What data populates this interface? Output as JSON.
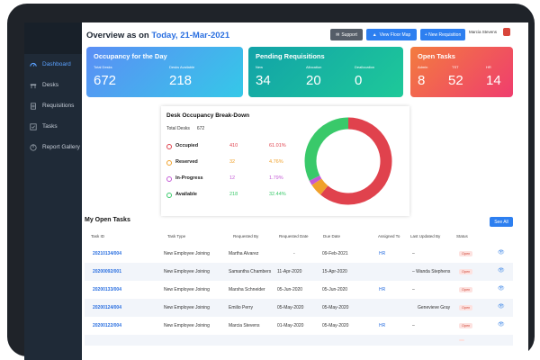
{
  "sidebar": {
    "items": [
      {
        "label": "Dashboard",
        "icon": "dashboard-icon",
        "active": true
      },
      {
        "label": "Desks",
        "icon": "desk-icon",
        "active": false
      },
      {
        "label": "Requisitions",
        "icon": "requisition-icon",
        "active": false
      },
      {
        "label": "Tasks",
        "icon": "tasks-icon",
        "active": false
      },
      {
        "label": "Report Gallery",
        "icon": "report-icon",
        "active": false
      }
    ]
  },
  "header": {
    "title_prefix": "Overview as on",
    "title_date": "Today, 21-Mar-2021",
    "support_label": "Support",
    "floor_map_label": "View Floor Map",
    "new_requisition_label": "+ New Requisition",
    "user_name": "Marcia Stevens"
  },
  "cards": {
    "occupancy": {
      "title": "Occupancy for the Day",
      "total_label": "Total Desks",
      "total_value": "672",
      "available_label": "Desks Available",
      "available_value": "218"
    },
    "pending": {
      "title": "Pending Requisitions",
      "new_label": "New",
      "new_value": "34",
      "allocation_label": "Allocation",
      "allocation_value": "20",
      "deallocation_label": "Deallocation",
      "deallocation_value": "0"
    },
    "open": {
      "title": "Open Tasks",
      "admin_label": "Admin",
      "admin_value": "8",
      "tst_label": "TST",
      "tst_value": "52",
      "hr_label": "HR",
      "hr_value": "14"
    }
  },
  "breakdown": {
    "title": "Desk Occupancy Break-Down",
    "total_label": "Total Desks",
    "total_value": "672",
    "rows": [
      {
        "label": "Occupied",
        "count": "410",
        "pct": "61.01%",
        "color": "#e0424d"
      },
      {
        "label": "Reserved",
        "count": "32",
        "pct": "4.76%",
        "color": "#f0a12b"
      },
      {
        "label": "In-Progress",
        "count": "12",
        "pct": "1.79%",
        "color": "#c45bd6"
      },
      {
        "label": "Available",
        "count": "218",
        "pct": "32.44%",
        "color": "#39c96a"
      }
    ]
  },
  "tasks": {
    "title": "My Open Tasks",
    "see_all_label": "See All",
    "columns": [
      "Task ID",
      "Task Type",
      "Requested By",
      "Requested Date",
      "Due Date",
      "Assigned To",
      "Last Updated By",
      "Status"
    ],
    "rows": [
      {
        "id": "20210134/004",
        "type": "New Employee Joining",
        "requested_by": "Martha Alvarez",
        "requested_date": "-",
        "due_date": "09-Feb-2021",
        "assigned": "HR",
        "updated_by": "–",
        "status": "Open"
      },
      {
        "id": "20200092/001",
        "type": "New Employee Joining",
        "requested_by": "Samantha Chambers",
        "requested_date": "11-Apr-2020",
        "due_date": "15-Apr-2020",
        "assigned": "",
        "updated_by": "– Wanda Stephens",
        "status": "Open"
      },
      {
        "id": "20200133/004",
        "type": "New Employee Joining",
        "requested_by": "Marsha Schneider",
        "requested_date": "05-Jun-2020",
        "due_date": "05-Jun-2020",
        "assigned": "HR",
        "updated_by": "–",
        "status": "Open"
      },
      {
        "id": "20200124/004",
        "type": "New Employee Joining",
        "requested_by": "Emilio Perry",
        "requested_date": "05-May-2020",
        "due_date": "05-May-2020",
        "assigned": "",
        "updated_by": "Genevieve Gray",
        "status": "Open"
      },
      {
        "id": "20200122/004",
        "type": "New Employee Joining",
        "requested_by": "Marcia Stevens",
        "requested_date": "01-May-2020",
        "due_date": "05-May-2020",
        "assigned": "HR",
        "updated_by": "–",
        "status": "Open"
      }
    ]
  }
}
